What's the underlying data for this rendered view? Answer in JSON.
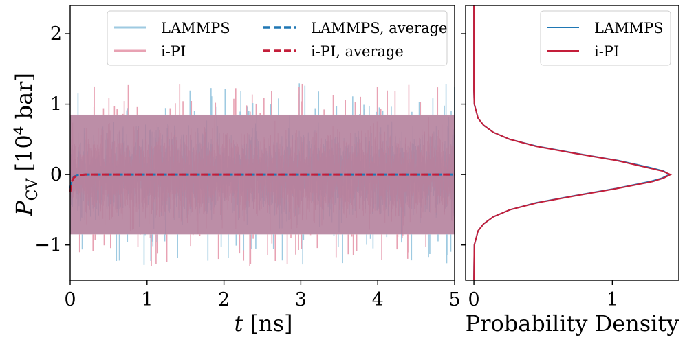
{
  "chart_data": [
    {
      "type": "line",
      "panel": "left",
      "xlabel": "t [ns]",
      "xlabel_parts": {
        "var": "t",
        "unit": " [ns]"
      },
      "ylabel_parts": {
        "sym": "P",
        "sub": "CV",
        "pre": " [10",
        "sup": "4",
        "post": " bar]"
      },
      "xlim": [
        0,
        5
      ],
      "ylim": [
        -1.5,
        2.4
      ],
      "xticks": [
        0,
        1,
        2,
        3,
        4,
        5
      ],
      "xtick_labels": [
        "0",
        "1",
        "2",
        "3",
        "4",
        "5"
      ],
      "yticks": [
        -1,
        0,
        1,
        2
      ],
      "ytick_labels": [
        "−1",
        "0",
        "1",
        "2"
      ],
      "noise": {
        "t_start": 0.0,
        "t_end": 5.0,
        "center": 0.0,
        "band_low": -0.85,
        "band_high": 0.85,
        "max": 1.35,
        "min": -1.37
      },
      "series": [
        {
          "name": "LAMMPS",
          "kind": "trace",
          "color": "#9ecae1"
        },
        {
          "name": "i-PI",
          "kind": "trace",
          "color": "#e8a2b3"
        },
        {
          "name": "LAMMPS, average",
          "kind": "average",
          "color": "#1f77b4",
          "x": [
            0,
            0.02,
            0.05,
            0.1,
            0.2,
            5.0
          ],
          "y": [
            -0.2,
            -0.08,
            -0.03,
            -0.01,
            0.0,
            0.0
          ]
        },
        {
          "name": "i-PI, average",
          "kind": "average",
          "color": "#c41e3a",
          "x": [
            0,
            0.02,
            0.05,
            0.1,
            0.2,
            5.0
          ],
          "y": [
            -0.25,
            -0.1,
            -0.04,
            -0.01,
            0.0,
            0.0
          ]
        }
      ],
      "legend": {
        "placement": "top-right",
        "columns": 2,
        "labels": [
          "LAMMPS",
          "i-PI",
          "LAMMPS, average",
          "i-PI, average"
        ]
      }
    },
    {
      "type": "line",
      "panel": "right",
      "orientation": "horizontal",
      "xlabel": "Probability Density",
      "xlim": [
        -0.06,
        1.48
      ],
      "ylim": [
        -1.5,
        2.4
      ],
      "xticks": [
        0,
        1
      ],
      "xtick_labels": [
        "0",
        "1"
      ],
      "series": [
        {
          "name": "LAMMPS",
          "color": "#1f77b4",
          "p": [
            -1.5,
            -1.0,
            -0.8,
            -0.7,
            -0.6,
            -0.5,
            -0.4,
            -0.3,
            -0.2,
            -0.1,
            -0.05,
            0.0,
            0.05,
            0.1,
            0.2,
            0.3,
            0.4,
            0.5,
            0.6,
            0.7,
            0.8,
            1.0,
            1.2,
            2.4
          ],
          "density": [
            0.0,
            0.003,
            0.03,
            0.07,
            0.14,
            0.26,
            0.45,
            0.73,
            1.02,
            1.27,
            1.36,
            1.41,
            1.37,
            1.27,
            1.04,
            0.74,
            0.46,
            0.26,
            0.14,
            0.07,
            0.03,
            0.003,
            0.0,
            0.0
          ]
        },
        {
          "name": "i-PI",
          "color": "#c41e3a",
          "p": [
            -1.5,
            -1.0,
            -0.8,
            -0.7,
            -0.6,
            -0.5,
            -0.4,
            -0.3,
            -0.2,
            -0.1,
            -0.05,
            0.0,
            0.05,
            0.1,
            0.2,
            0.3,
            0.4,
            0.5,
            0.6,
            0.7,
            0.8,
            1.0,
            1.2,
            2.4
          ],
          "density": [
            0.0,
            0.003,
            0.03,
            0.07,
            0.14,
            0.26,
            0.46,
            0.74,
            1.03,
            1.29,
            1.37,
            1.42,
            1.36,
            1.25,
            1.03,
            0.73,
            0.45,
            0.26,
            0.14,
            0.07,
            0.03,
            0.003,
            0.0,
            0.0
          ]
        }
      ],
      "legend": {
        "placement": "top-right",
        "labels": [
          "LAMMPS",
          "i-PI"
        ]
      }
    }
  ]
}
